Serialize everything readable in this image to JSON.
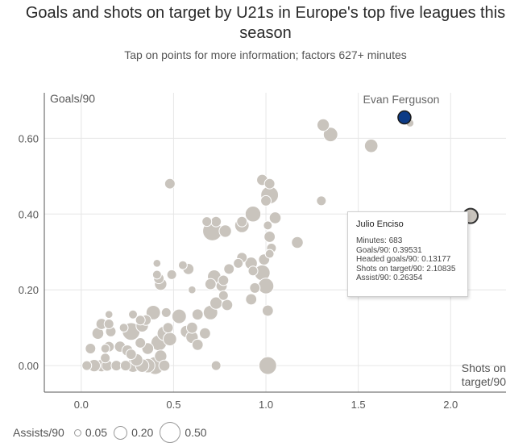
{
  "title": "Goals and shots on target by U21s in Europe's top five leagues this season",
  "subtitle": "Tap on points for more information; factors 627+ minutes",
  "colors": {
    "dot": "#c9c4bd",
    "dot_stroke": "#ffffff",
    "highlight": "#0d3b86",
    "selected_stroke": "#333333",
    "grid": "#e6e6e6",
    "axis": "#555555"
  },
  "tooltip": {
    "name": "Julio Enciso",
    "rows": [
      "Minutes: 683",
      "Goals/90: 0.39531",
      "Headed goals/90: 0.13177",
      "Shots on target/90: 2.10835",
      "Assist/90: 0.26354"
    ]
  },
  "legend": {
    "title": "Assists/90",
    "items": [
      {
        "label": "0.05",
        "value": 0.05
      },
      {
        "label": "0.20",
        "value": 0.2
      },
      {
        "label": "0.50",
        "value": 0.5
      }
    ]
  },
  "chart_data": {
    "type": "scatter",
    "title": "Goals and shots on target by U21s in Europe's top five leagues this season",
    "subtitle": "Tap on points for more information; factors 627+ minutes",
    "xlabel": "Shots on target/90",
    "ylabel": "Goals/90",
    "size_label": "Assists/90",
    "xlim": [
      -0.2,
      2.3
    ],
    "ylim": [
      -0.07,
      0.72
    ],
    "xticks": [
      "0.0",
      "0.5",
      "1.0",
      "1.5",
      "2.0"
    ],
    "xtick_values": [
      0,
      0.5,
      1.0,
      1.5,
      2.0
    ],
    "yticks": [
      "0.00",
      "0.20",
      "0.40",
      "0.60"
    ],
    "ytick_values": [
      0,
      0.2,
      0.4,
      0.6
    ],
    "grid": true,
    "legend_position": "bottom-left",
    "annotations": [
      {
        "label": "Evan Ferguson",
        "x": 1.75,
        "y": 0.66
      }
    ],
    "highlighted": [
      {
        "name": "Evan Ferguson",
        "x": 1.75,
        "y": 0.655,
        "size": 0.05,
        "style": "filled-blue"
      },
      {
        "name": "Julio Enciso",
        "x": 2.108,
        "y": 0.395,
        "size": 0.26,
        "style": "selected"
      }
    ],
    "points": [
      {
        "x": 1.31,
        "y": 0.635,
        "size": 0.08
      },
      {
        "x": 1.35,
        "y": 0.61,
        "size": 0.12
      },
      {
        "x": 1.57,
        "y": 0.58,
        "size": 0.1
      },
      {
        "x": 1.78,
        "y": 0.64,
        "size": 0.02
      },
      {
        "x": 0.48,
        "y": 0.48,
        "size": 0.05
      },
      {
        "x": 0.98,
        "y": 0.49,
        "size": 0.06
      },
      {
        "x": 1.02,
        "y": 0.48,
        "size": 0.05
      },
      {
        "x": 1.02,
        "y": 0.45,
        "size": 0.2
      },
      {
        "x": 1.0,
        "y": 0.435,
        "size": 0.05
      },
      {
        "x": 1.3,
        "y": 0.435,
        "size": 0.04
      },
      {
        "x": 0.93,
        "y": 0.4,
        "size": 0.15
      },
      {
        "x": 1.05,
        "y": 0.39,
        "size": 0.07
      },
      {
        "x": 1.01,
        "y": 0.37,
        "size": 0.03
      },
      {
        "x": 0.87,
        "y": 0.38,
        "size": 0.05
      },
      {
        "x": 0.87,
        "y": 0.37,
        "size": 0.12
      },
      {
        "x": 0.73,
        "y": 0.38,
        "size": 0.05
      },
      {
        "x": 0.68,
        "y": 0.38,
        "size": 0.04
      },
      {
        "x": 0.71,
        "y": 0.355,
        "size": 0.25
      },
      {
        "x": 0.78,
        "y": 0.355,
        "size": 0.08
      },
      {
        "x": 1.02,
        "y": 0.34,
        "size": 0.06
      },
      {
        "x": 1.17,
        "y": 0.325,
        "size": 0.07
      },
      {
        "x": 1.03,
        "y": 0.31,
        "size": 0.04
      },
      {
        "x": 0.99,
        "y": 0.28,
        "size": 0.06
      },
      {
        "x": 1.02,
        "y": 0.295,
        "size": 0.03
      },
      {
        "x": 0.87,
        "y": 0.285,
        "size": 0.05
      },
      {
        "x": 0.85,
        "y": 0.27,
        "size": 0.04
      },
      {
        "x": 0.92,
        "y": 0.27,
        "size": 0.08
      },
      {
        "x": 0.98,
        "y": 0.245,
        "size": 0.15
      },
      {
        "x": 0.93,
        "y": 0.25,
        "size": 0.04
      },
      {
        "x": 0.8,
        "y": 0.255,
        "size": 0.05
      },
      {
        "x": 0.72,
        "y": 0.235,
        "size": 0.1
      },
      {
        "x": 0.77,
        "y": 0.225,
        "size": 0.05
      },
      {
        "x": 0.7,
        "y": 0.215,
        "size": 0.06
      },
      {
        "x": 0.76,
        "y": 0.21,
        "size": 0.06
      },
      {
        "x": 0.55,
        "y": 0.265,
        "size": 0.03
      },
      {
        "x": 0.58,
        "y": 0.255,
        "size": 0.06
      },
      {
        "x": 0.41,
        "y": 0.24,
        "size": 0.03
      },
      {
        "x": 0.42,
        "y": 0.23,
        "size": 0.05
      },
      {
        "x": 0.41,
        "y": 0.27,
        "size": 0.02
      },
      {
        "x": 0.49,
        "y": 0.24,
        "size": 0.04
      },
      {
        "x": 0.43,
        "y": 0.215,
        "size": 0.08
      },
      {
        "x": 0.6,
        "y": 0.2,
        "size": 0.02
      },
      {
        "x": 1.0,
        "y": 0.21,
        "size": 0.15
      },
      {
        "x": 0.94,
        "y": 0.205,
        "size": 0.05
      },
      {
        "x": 0.77,
        "y": 0.185,
        "size": 0.04
      },
      {
        "x": 0.92,
        "y": 0.175,
        "size": 0.06
      },
      {
        "x": 0.73,
        "y": 0.165,
        "size": 0.08
      },
      {
        "x": 0.79,
        "y": 0.16,
        "size": 0.06
      },
      {
        "x": 1.01,
        "y": 0.145,
        "size": 0.06
      },
      {
        "x": 0.63,
        "y": 0.135,
        "size": 0.06
      },
      {
        "x": 0.7,
        "y": 0.14,
        "size": 0.12
      },
      {
        "x": 0.53,
        "y": 0.13,
        "size": 0.12
      },
      {
        "x": 0.39,
        "y": 0.14,
        "size": 0.12
      },
      {
        "x": 0.46,
        "y": 0.14,
        "size": 0.04
      },
      {
        "x": 0.28,
        "y": 0.135,
        "size": 0.03
      },
      {
        "x": 0.32,
        "y": 0.12,
        "size": 0.04
      },
      {
        "x": 0.35,
        "y": 0.12,
        "size": 0.05
      },
      {
        "x": 0.33,
        "y": 0.105,
        "size": 0.08
      },
      {
        "x": 0.6,
        "y": 0.1,
        "size": 0.06
      },
      {
        "x": 0.47,
        "y": 0.1,
        "size": 0.05
      },
      {
        "x": 0.57,
        "y": 0.09,
        "size": 0.08
      },
      {
        "x": 0.67,
        "y": 0.085,
        "size": 0.06
      },
      {
        "x": 0.27,
        "y": 0.09,
        "size": 0.2
      },
      {
        "x": 0.11,
        "y": 0.11,
        "size": 0.06
      },
      {
        "x": 0.09,
        "y": 0.085,
        "size": 0.07
      },
      {
        "x": 0.16,
        "y": 0.09,
        "size": 0.05
      },
      {
        "x": 0.23,
        "y": 0.1,
        "size": 0.03
      },
      {
        "x": 0.45,
        "y": 0.085,
        "size": 0.12
      },
      {
        "x": 0.6,
        "y": 0.075,
        "size": 0.08
      },
      {
        "x": 0.48,
        "y": 0.07,
        "size": 0.1
      },
      {
        "x": 0.42,
        "y": 0.06,
        "size": 0.15
      },
      {
        "x": 0.32,
        "y": 0.06,
        "size": 0.05
      },
      {
        "x": 0.36,
        "y": 0.045,
        "size": 0.07
      },
      {
        "x": 0.21,
        "y": 0.05,
        "size": 0.06
      },
      {
        "x": 0.25,
        "y": 0.04,
        "size": 0.06
      },
      {
        "x": 0.15,
        "y": 0.05,
        "size": 0.05
      },
      {
        "x": 0.13,
        "y": 0.045,
        "size": 0.03
      },
      {
        "x": 0.05,
        "y": 0.045,
        "size": 0.05
      },
      {
        "x": 0.27,
        "y": 0.03,
        "size": 0.05
      },
      {
        "x": 0.63,
        "y": 0.055,
        "size": 0.06
      },
      {
        "x": 0.43,
        "y": 0.025,
        "size": 0.08
      },
      {
        "x": 0.4,
        "y": 0.0,
        "size": 0.2
      },
      {
        "x": 0.36,
        "y": 0.0,
        "size": 0.12
      },
      {
        "x": 0.28,
        "y": 0.0,
        "size": 0.1
      },
      {
        "x": 0.19,
        "y": 0.0,
        "size": 0.05
      },
      {
        "x": 0.11,
        "y": 0.0,
        "size": 0.08
      },
      {
        "x": 0.07,
        "y": 0.0,
        "size": 0.08
      },
      {
        "x": 0.03,
        "y": 0.0,
        "size": 0.04
      },
      {
        "x": 0.14,
        "y": 0.0,
        "size": 0.06
      },
      {
        "x": 0.24,
        "y": 0.0,
        "size": 0.05
      },
      {
        "x": 0.33,
        "y": 0.0,
        "size": 0.1
      },
      {
        "x": 0.45,
        "y": 0.0,
        "size": 0.06
      },
      {
        "x": 0.73,
        "y": 0.0,
        "size": 0.04
      },
      {
        "x": 1.01,
        "y": 0.0,
        "size": 0.2
      },
      {
        "x": 0.13,
        "y": 0.02,
        "size": 0.04
      },
      {
        "x": 0.3,
        "y": 0.015,
        "size": 0.08
      },
      {
        "x": 0.15,
        "y": 0.11,
        "size": 0.04
      },
      {
        "x": 0.15,
        "y": 0.135,
        "size": 0.02
      }
    ]
  }
}
